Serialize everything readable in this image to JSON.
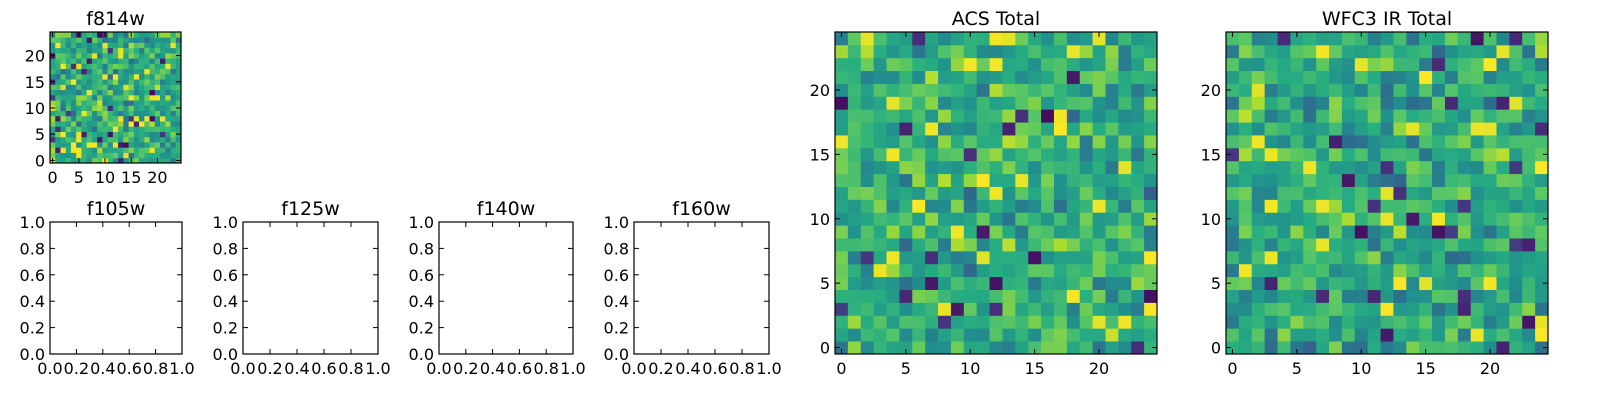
{
  "chart_data": [
    {
      "type": "heatmap",
      "title": "f814w",
      "xlabel": "",
      "ylabel": "",
      "grid": false,
      "colormap": "viridis",
      "size": [
        25,
        25
      ],
      "xlim": [
        -0.5,
        24.5
      ],
      "ylim": [
        -0.5,
        24.5
      ],
      "xticks": [
        0,
        5,
        10,
        15,
        20
      ],
      "yticks": [
        0,
        5,
        10,
        15,
        20
      ],
      "xtick_labels": [
        "0",
        "5",
        "10",
        "15",
        "20"
      ],
      "ytick_labels": [
        "0",
        "5",
        "10",
        "15",
        "20"
      ],
      "seed": 814,
      "values": []
    },
    {
      "type": "heatmap",
      "title": "f105w",
      "xlabel": "",
      "ylabel": "",
      "grid": false,
      "empty": true,
      "xlim": [
        0,
        1
      ],
      "ylim": [
        0,
        1
      ],
      "xticks": [
        0,
        0.2,
        0.4,
        0.6,
        0.8,
        1.0
      ],
      "yticks": [
        0,
        0.2,
        0.4,
        0.6,
        0.8,
        1.0
      ],
      "xtick_labels": [
        "0.0",
        "0.2",
        "0.4",
        "0.6",
        "0.8",
        "1.0"
      ],
      "ytick_labels": [
        "0.0",
        "0.2",
        "0.4",
        "0.6",
        "0.8",
        "1.0"
      ],
      "values": []
    },
    {
      "type": "heatmap",
      "title": "f125w",
      "xlabel": "",
      "ylabel": "",
      "grid": false,
      "empty": true,
      "xlim": [
        0,
        1
      ],
      "ylim": [
        0,
        1
      ],
      "xticks": [
        0,
        0.2,
        0.4,
        0.6,
        0.8,
        1.0
      ],
      "yticks": [
        0,
        0.2,
        0.4,
        0.6,
        0.8,
        1.0
      ],
      "xtick_labels": [
        "0.0",
        "0.2",
        "0.4",
        "0.6",
        "0.8",
        "1.0"
      ],
      "ytick_labels": [
        "0.0",
        "0.2",
        "0.4",
        "0.6",
        "0.8",
        "1.0"
      ],
      "values": []
    },
    {
      "type": "heatmap",
      "title": "f140w",
      "xlabel": "",
      "ylabel": "",
      "grid": false,
      "empty": true,
      "xlim": [
        0,
        1
      ],
      "ylim": [
        0,
        1
      ],
      "xticks": [
        0,
        0.2,
        0.4,
        0.6,
        0.8,
        1.0
      ],
      "yticks": [
        0,
        0.2,
        0.4,
        0.6,
        0.8,
        1.0
      ],
      "xtick_labels": [
        "0.0",
        "0.2",
        "0.4",
        "0.6",
        "0.8",
        "1.0"
      ],
      "ytick_labels": [
        "0.0",
        "0.2",
        "0.4",
        "0.6",
        "0.8",
        "1.0"
      ],
      "values": []
    },
    {
      "type": "heatmap",
      "title": "f160w",
      "xlabel": "",
      "ylabel": "",
      "grid": false,
      "empty": true,
      "xlim": [
        0,
        1
      ],
      "ylim": [
        0,
        1
      ],
      "xticks": [
        0,
        0.2,
        0.4,
        0.6,
        0.8,
        1.0
      ],
      "yticks": [
        0,
        0.2,
        0.4,
        0.6,
        0.8,
        1.0
      ],
      "xtick_labels": [
        "0.0",
        "0.2",
        "0.4",
        "0.6",
        "0.8",
        "1.0"
      ],
      "ytick_labels": [
        "0.0",
        "0.2",
        "0.4",
        "0.6",
        "0.8",
        "1.0"
      ],
      "values": []
    },
    {
      "type": "heatmap",
      "title": "ACS Total",
      "xlabel": "",
      "ylabel": "",
      "grid": false,
      "colormap": "viridis",
      "size": [
        25,
        25
      ],
      "xlim": [
        -0.5,
        24.5
      ],
      "ylim": [
        -0.5,
        24.5
      ],
      "xticks": [
        0,
        5,
        10,
        15,
        20
      ],
      "yticks": [
        0,
        5,
        10,
        15,
        20
      ],
      "xtick_labels": [
        "0",
        "5",
        "10",
        "15",
        "20"
      ],
      "ytick_labels": [
        "0",
        "5",
        "10",
        "15",
        "20"
      ],
      "seed": 1001,
      "values": []
    },
    {
      "type": "heatmap",
      "title": "WFC3 IR Total",
      "xlabel": "",
      "ylabel": "",
      "grid": false,
      "colormap": "viridis",
      "size": [
        25,
        25
      ],
      "xlim": [
        -0.5,
        24.5
      ],
      "ylim": [
        -0.5,
        24.5
      ],
      "xticks": [
        0,
        5,
        10,
        15,
        20
      ],
      "yticks": [
        0,
        5,
        10,
        15,
        20
      ],
      "xtick_labels": [
        "0",
        "5",
        "10",
        "15",
        "20"
      ],
      "ytick_labels": [
        "0",
        "5",
        "10",
        "15",
        "20"
      ],
      "seed": 3003,
      "values": []
    }
  ]
}
